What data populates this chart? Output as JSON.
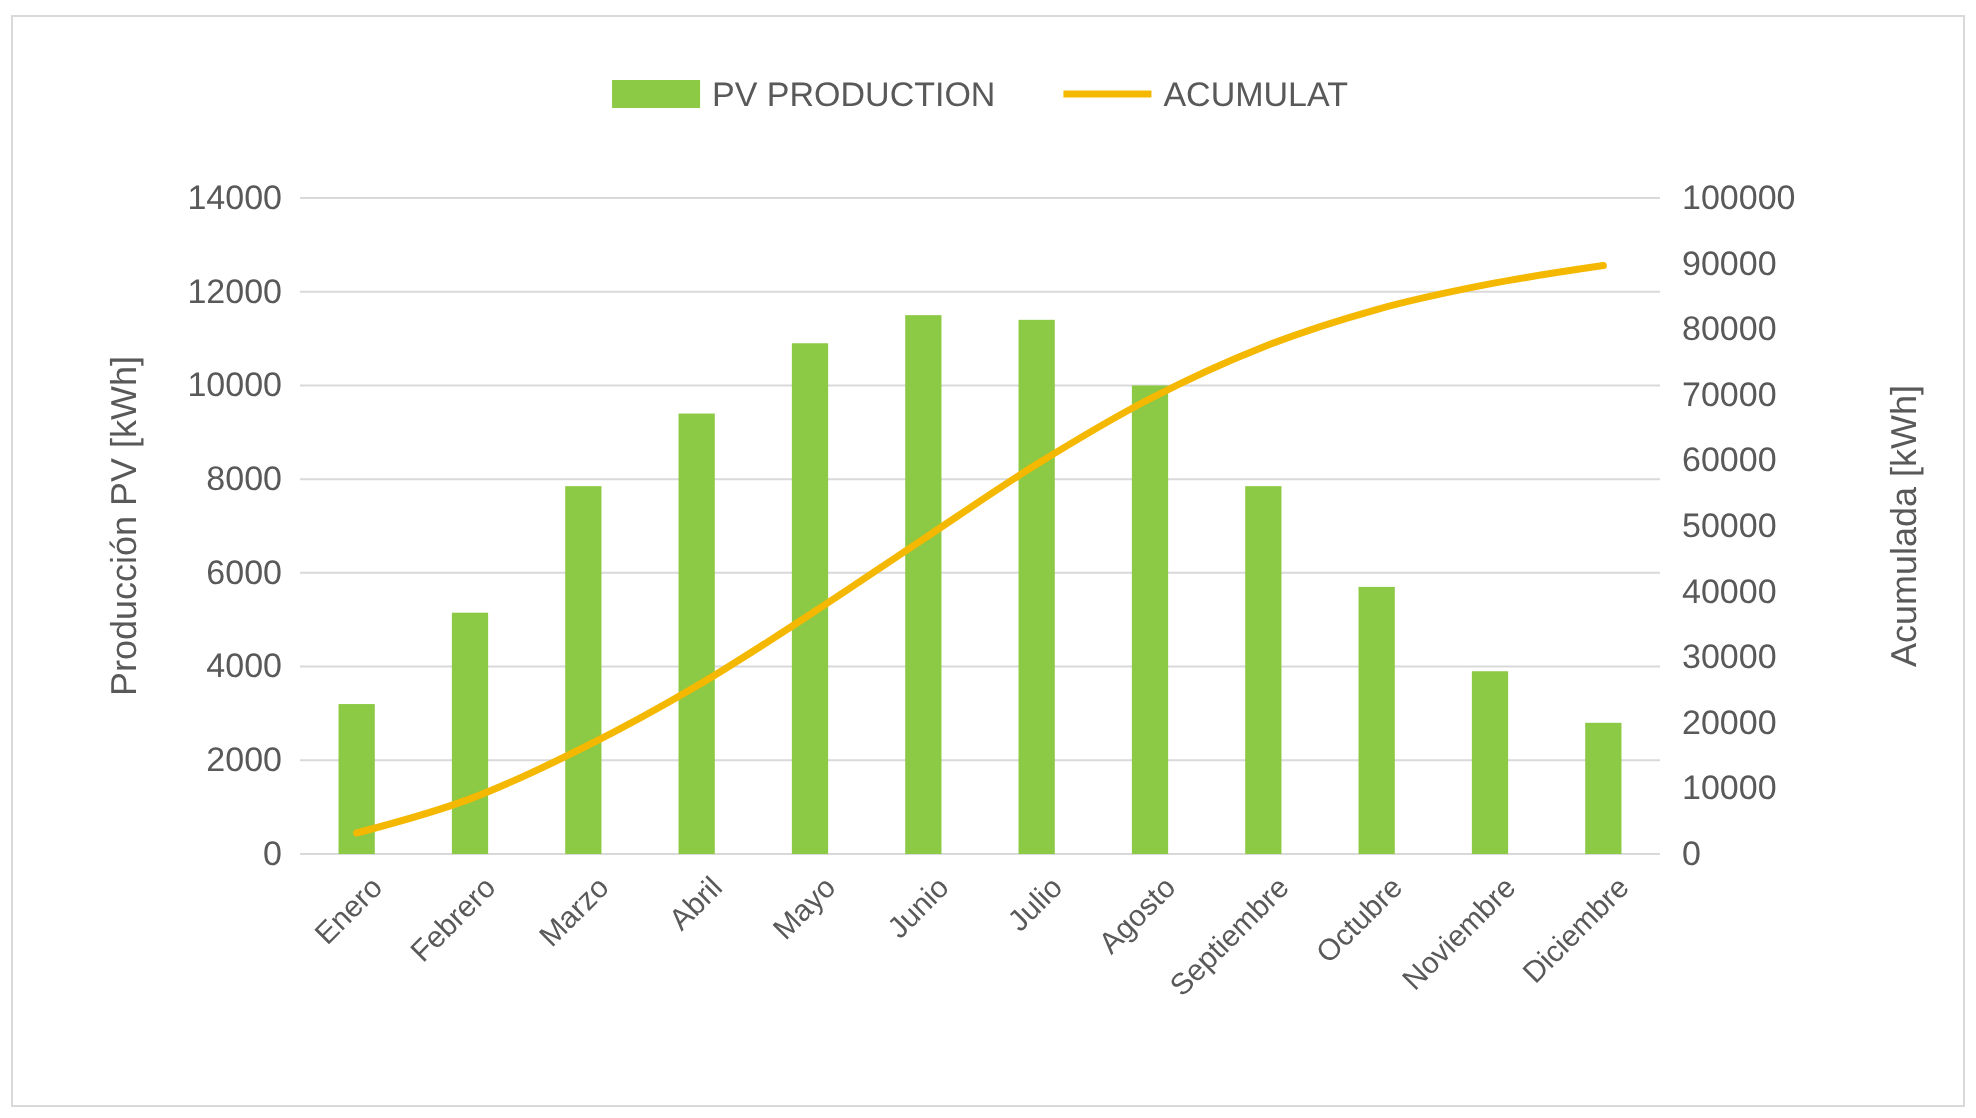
{
  "chart_data": {
    "type": "bar",
    "categories": [
      "Enero",
      "Febrero",
      "Marzo",
      "Abril",
      "Mayo",
      "Junio",
      "Julio",
      "Agosto",
      "Septiembre",
      "Octubre",
      "Noviembre",
      "Diciembre"
    ],
    "ylabel": "Producción PV [kWh]",
    "y2label": "Acumulada [kWh]",
    "ylim": [
      0,
      14000
    ],
    "yticks": [
      0,
      2000,
      4000,
      6000,
      8000,
      10000,
      12000,
      14000
    ],
    "y2lim": [
      0,
      100000
    ],
    "y2ticks": [
      0,
      10000,
      20000,
      30000,
      40000,
      50000,
      60000,
      70000,
      80000,
      90000,
      100000
    ],
    "grid": "y",
    "legend": "top",
    "series": [
      {
        "name": "PV PRODUCTION",
        "color": "#8cc944",
        "values": [
          3200,
          5150,
          7850,
          9400,
          10900,
          11500,
          11400,
          10000,
          7850,
          5700,
          3900,
          2800
        ]
      },
      {
        "name": "ACUMULAT",
        "type": "line",
        "axis": "y2",
        "color": "#f5b800",
        "values": [
          3200,
          8400,
          16200,
          25600,
          36500,
          48000,
          59400,
          69400,
          77300,
          83000,
          86900,
          89700
        ]
      }
    ]
  }
}
